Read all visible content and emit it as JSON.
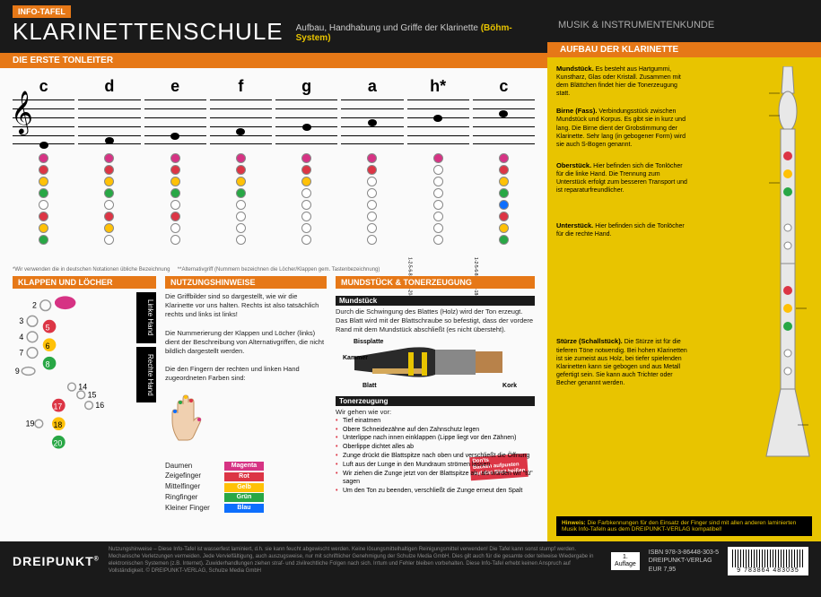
{
  "header": {
    "info_tag": "INFO-TAFEL",
    "title": "KLARINETTENSCHULE",
    "subtitle_plain": "Aufbau, Handhabung und Griffe der Klarinette ",
    "subtitle_em": "(Böhm-System)",
    "right_title": "MUSIK",
    "right_sub": " & INSTRUMENTENKUNDE"
  },
  "scale": {
    "heading": "DIE ERSTE TONLEITER",
    "notes": [
      "c",
      "d",
      "e",
      "f",
      "g",
      "a",
      "h*",
      "c"
    ],
    "head_pos": [
      46,
      41,
      36,
      31,
      26,
      21,
      16,
      11
    ],
    "footnote_left": "*Wir verwenden die in deutschen Notationen übliche Bezeichnung",
    "footnote_right": "**Alternativgriff (Nummern bezeichnen die Löcher/Klappen gem. Tastenbezeichnung)",
    "alt1": "1-2-5-6-8-17-18-20-24",
    "alt2": "1-2-5-6-8-14-17-18-20"
  },
  "keys": {
    "heading": "KLAPPEN UND LÖCHER",
    "left_hand": "Linke Hand",
    "right_hand": "Rechte Hand"
  },
  "usage": {
    "heading": "NUTZUNGSHINWEISE",
    "p1": "Die Griffbilder sind so dargestellt, wie wir die Klarinette vor uns halten. Rechts ist also tatsächlich rechts und links ist links!",
    "p2": "Die Nummerierung der Klappen und Löcher (links) dient der Beschreibung von Alternativgriffen, die nicht bildlich dargestellt werden.",
    "p3": "Die den Fingern der rechten und linken Hand zugeordneten Farben sind:",
    "fingers": [
      {
        "name": "Daumen",
        "color": "Magenta",
        "hex": "#d63384"
      },
      {
        "name": "Zeigefinger",
        "color": "Rot",
        "hex": "#dc3545"
      },
      {
        "name": "Mittelfinger",
        "color": "Gelb",
        "hex": "#ffc107"
      },
      {
        "name": "Ringfinger",
        "color": "Grün",
        "hex": "#28a745"
      },
      {
        "name": "Kleiner Finger",
        "color": "Blau",
        "hex": "#0d6efd"
      }
    ]
  },
  "mouthpiece": {
    "heading": "MUNDSTÜCK & TONERZEUGUNG",
    "sub1": "Mundstück",
    "p1": "Durch die Schwingung des Blattes (Holz) wird der Ton erzeugt. Das Blatt wird mit der Blattschraube so befestigt, dass der vordere Rand mit dem Mundstück abschließt (es nicht übersteht).",
    "labels": {
      "biss": "Bissplatte",
      "kammer": "Kammer",
      "blatt": "Blatt",
      "kork": "Kork"
    },
    "sub2": "Tonerzeugung",
    "intro": "Wir gehen wie vor:",
    "steps": [
      "Tief einatmen",
      "Obere Schneidezähne auf den Zahnschutz legen",
      "Unterlippe nach innen einklappen (Lippe liegt vor den Zähnen)",
      "Oberlippe dichtet alles ab",
      "Zunge drückt die Blattspitze nach oben und verschließt die Öffnung",
      "Luft aus der Lunge in den Mundraum strömen lassen",
      "Wir ziehen die Zunge jetzt von der Blattspitze ab, als würden wir \"tü\" sagen",
      "Um den Ton zu beenden, verschließt die Zunge erneut den Spalt"
    ],
    "donts": "Don'ts\nBacken aufpusten\nAuf das Blatt beißen"
  },
  "anatomy": {
    "heading": "AUFBAU DER KLARINETTE",
    "parts": [
      {
        "t": "Mundstück.",
        "d": "Es besteht aus Hartgummi, Kunstharz, Glas oder Kristall. Zusammen mit dem Blättchen findet hier die Tonerzeugung statt."
      },
      {
        "t": "Birne (Fass).",
        "d": "Verbindungsstück zwischen Mundstück und Korpus. Es gibt sie in kurz und lang. Die Birne dient der Grobstimmung der Klarinette. Sehr lang (in gebogener Form) wird sie auch S-Bogen genannt."
      },
      {
        "t": "Oberstück.",
        "d": "Hier befinden sich die Tonlöcher für die linke Hand. Die Trennung zum Unterstück erfolgt zum besseren Transport und ist reparaturfreundlicher."
      },
      {
        "t": "Unterstück.",
        "d": "Hier befinden sich die Tonlöcher für die rechte Hand."
      },
      {
        "t": "Stürze (Schallstück).",
        "d": "Die Stürze ist für die tieferen Töne notwendig. Bei hohen Klarinetten ist sie zumeist aus Holz, bei tiefer spielenden Klarinetten kann sie gebogen und aus Metall gefertigt sein. Sie kann auch Trichter oder Becher genannt werden."
      }
    ],
    "hint_label": "Hinweis:",
    "hint": "Die Farbkennungen für den Einsatz der Finger sind mit allen anderen laminierten Musik Info-Tafeln aus dem DREIPUNKT-VERLAG kompatibel!"
  },
  "footer": {
    "logo": "DREIPUNKT",
    "text": "Nutzungshinweise – Diese Info-Tafel ist wasserfest laminiert, d.h. sie kann feucht abgewischt werden. Keine lösungsmittelhaltigen Reinigungsmittel verwenden! Die Tafel kann sonst stumpf werden. Mechanische Verletzungen vermeiden. Jede Vervielfältigung, auch auszugsweise, nur mit schriftlicher Genehmigung der Schulze Media GmbH. Dies gilt auch für die gesamte oder teilweise Wiedergabe in elektronischen Systemen (z.B. Internet). Zuwiderhandlungen ziehen straf- und zivilrechtliche Folgen nach sich. Irrtum und Fehler bleiben vorbehalten. Diese Info-Tafel erhebt keinen Anspruch auf Vollständigkeit. © DREIPUNKT-VERLAG, Schulze Media GmbH",
    "edition_n": "1.",
    "edition_l": "Auflage",
    "isbn": "ISBN 978-3-86448-303-5",
    "publisher": "DREIPUNKT-VERLAG",
    "price": "EUR 7,95",
    "barcode": "9 783864 483035"
  }
}
